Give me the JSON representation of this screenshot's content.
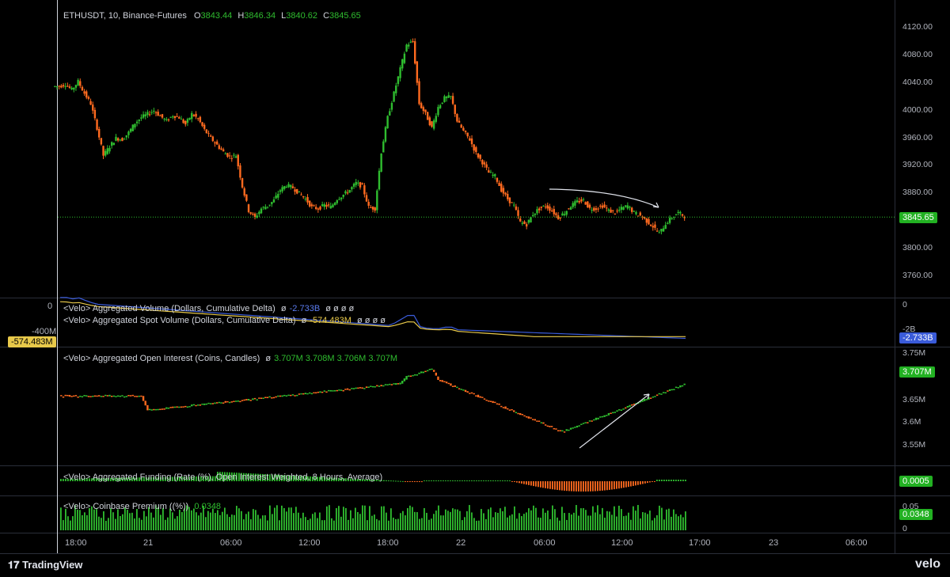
{
  "header": {
    "symbol": "ETHUSDT, 10, Binance-Futures",
    "o_label": "O",
    "o_value": "3843.44",
    "h_label": "H",
    "h_value": "3846.34",
    "l_label": "L",
    "l_value": "3840.62",
    "c_label": "C",
    "c_value": "3845.65"
  },
  "panes": {
    "volume": {
      "line1": "<Velo> Aggregated Volume (Dollars, Cumulative Delta)",
      "line1_value": "-2.733B",
      "line2": "<Velo> Aggregated Spot Volume (Dollars, Cumulative Delta)",
      "line2_value": "-574.483M",
      "empty": "ø  ø  ø  ø",
      "empty_sym": "ø",
      "right_tag": "-2.733B",
      "left_tag": "-574.483M",
      "left_axis_top": "0",
      "left_axis_mid": "-400M",
      "right_axis_top": "0",
      "right_axis_mid": "-2B"
    },
    "oi": {
      "title": "<Velo> Aggregated Open Interest (Coins, Candles)",
      "values": "3.707M  3.708M  3.706M  3.707M",
      "empty_sym": "ø",
      "right_tag": "3.707M",
      "ticks": [
        "3.75M",
        "3.65M",
        "3.6M",
        "3.55M"
      ]
    },
    "funding": {
      "title": "<Velo> Aggregated Funding (Rate (%), Open Interest Weighted, 8 Hours, Average)",
      "right_tag": "0.0005"
    },
    "premium": {
      "title": "<Velo> Coinbase Premium ((%))",
      "value": "0.0348",
      "right_tag": "0.0348",
      "ticks": [
        "0.05",
        "0"
      ]
    }
  },
  "price_tag": "3845.65",
  "time_axis": [
    "18:00",
    "21",
    "06:00",
    "12:00",
    "18:00",
    "22",
    "06:00",
    "12:00",
    "17:00",
    "23",
    "06:00"
  ],
  "brand": {
    "tradingview": "TradingView",
    "velo": "velo"
  },
  "colors": {
    "up": "#26a69a",
    "upbright": "#2fbd2f",
    "down": "#f7525f",
    "orange": "#ff6a1f",
    "blue": "#3a5bd9",
    "yellow": "#e8c94a",
    "green_tag": "#22b122"
  },
  "chart_data": {
    "type": "line",
    "title": "ETHUSDT, 10, Binance-Futures",
    "y_ticks": [
      4120,
      4080,
      4040,
      4000,
      3960,
      3920,
      3880,
      3800,
      3760
    ],
    "ylim": [
      3745,
      4125
    ],
    "x_labels": [
      "18:00",
      "21",
      "06:00",
      "12:00",
      "18:00",
      "22",
      "06:00",
      "12:00",
      "17:00",
      "23",
      "06:00"
    ],
    "series": [
      {
        "values": [
          4035,
          4038,
          4030,
          4042,
          4025,
          4010,
          3975,
          3935,
          3948,
          3960,
          3958,
          3968,
          3982,
          3990,
          3995,
          4000,
          3992,
          3985,
          3993,
          3990,
          3980,
          3995,
          3988,
          3972,
          3960,
          3950,
          3940,
          3933,
          3935,
          3890,
          3855,
          3845,
          3858,
          3862,
          3870,
          3885,
          3892,
          3888,
          3880,
          3872,
          3860,
          3858,
          3863,
          3860,
          3872,
          3878,
          3885,
          3895,
          3890,
          3860,
          3858,
          3940,
          3990,
          4025,
          4060,
          4095,
          4100,
          4010,
          3995,
          3975,
          4005,
          4018,
          4020,
          3985,
          3970,
          3958,
          3938,
          3925,
          3910,
          3905,
          3885,
          3872,
          3862,
          3838,
          3835,
          3850,
          3858,
          3862,
          3855,
          3845,
          3852,
          3862,
          3868,
          3870,
          3858,
          3858,
          3862,
          3855,
          3852,
          3858,
          3862,
          3852,
          3848,
          3840,
          3832,
          3822,
          3836,
          3845,
          3852,
          3847
        ]
      }
    ],
    "last_price": 3845.65
  }
}
